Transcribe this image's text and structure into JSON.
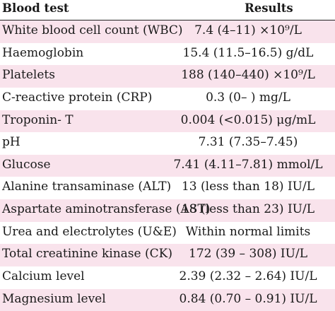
{
  "table": {
    "headers": [
      "Blood test",
      "Results"
    ],
    "rows": [
      {
        "test": "White blood cell count (WBC)",
        "result": "7.4 (4–11) ×10⁹/L"
      },
      {
        "test": "Haemoglobin",
        "result": "15.4 (11.5–16.5) g/dL"
      },
      {
        "test": "Platelets",
        "result": "188 (140–440) ×10⁹/L"
      },
      {
        "test": "C-reactive protein (CRP)",
        "result": "0.3 (0– ) mg/L"
      },
      {
        "test": "Troponin- T",
        "result": "0.004 (<0.015) μg/mL"
      },
      {
        "test": "pH",
        "result": "7.31 (7.35–7.45)"
      },
      {
        "test": "Glucose",
        "result": "7.41 (4.11–7.81) mmol/L"
      },
      {
        "test": "Alanine transaminase (ALT)",
        "result": "13 (less than 18) IU/L"
      },
      {
        "test": "Aspartate aminotransferase (AST)",
        "result": "18 (less than 23) IU/L"
      },
      {
        "test": "Urea and electrolytes (U&E)",
        "result": "Within normal limits"
      },
      {
        "test": "Total creatinine kinase (CK)",
        "result": "172 (39 – 308) IU/L"
      },
      {
        "test": "Calcium level",
        "result": "2.39 (2.32 – 2.64) IU/L"
      },
      {
        "test": "Magnesium level",
        "result": "0.84 (0.70 – 0.91) IU/L"
      }
    ]
  },
  "colors": {
    "shaded_row": "#f9e3ec",
    "plain_row": "#ffffff"
  }
}
